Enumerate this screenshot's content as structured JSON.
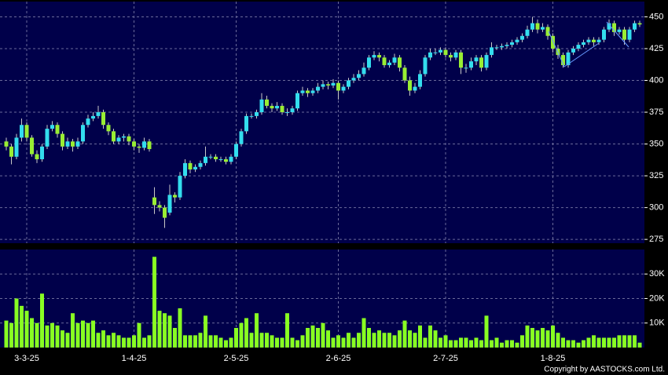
{
  "chart_data": {
    "type": "candlestick",
    "categories": [
      null,
      null,
      null,
      null,
      "3-3-25",
      null,
      null,
      null,
      null,
      null,
      null,
      null,
      null,
      null,
      null,
      null,
      null,
      null,
      null,
      null,
      null,
      null,
      null,
      null,
      null,
      "1-4-25",
      null,
      null,
      null,
      null,
      null,
      null,
      null,
      null,
      null,
      null,
      null,
      null,
      null,
      null,
      null,
      null,
      null,
      null,
      null,
      "2-5-25",
      null,
      null,
      null,
      null,
      null,
      null,
      null,
      null,
      null,
      null,
      null,
      null,
      null,
      null,
      null,
      null,
      null,
      null,
      null,
      "2-6-25",
      null,
      null,
      null,
      null,
      null,
      null,
      null,
      null,
      null,
      null,
      null,
      null,
      null,
      null,
      null,
      null,
      null,
      null,
      null,
      null,
      "2-7-25",
      null,
      null,
      null,
      null,
      null,
      null,
      null,
      null,
      null,
      null,
      null,
      null,
      null,
      null,
      null,
      null,
      null,
      null,
      null,
      null,
      "1-8-25",
      null,
      null,
      null,
      null,
      null,
      null,
      null,
      null,
      null,
      null,
      null,
      null,
      null,
      null,
      null,
      null,
      null
    ],
    "open": [
      352,
      348,
      340,
      355,
      365,
      355,
      342,
      338,
      348,
      362,
      365,
      358,
      348,
      352,
      348,
      352,
      365,
      370,
      372,
      375,
      365,
      360,
      352,
      355,
      356,
      352,
      348,
      347,
      352,
      308,
      302,
      300,
      296,
      310,
      308,
      325,
      335,
      330,
      332,
      335,
      340,
      340,
      338,
      338,
      336,
      340,
      350,
      360,
      372,
      372,
      375,
      385,
      380,
      378,
      380,
      375,
      375,
      378,
      390,
      392,
      390,
      392,
      395,
      397,
      396,
      398,
      392,
      395,
      400,
      402,
      405,
      410,
      418,
      420,
      418,
      412,
      414,
      418,
      410,
      400,
      392,
      395,
      405,
      418,
      422,
      422,
      424,
      420,
      418,
      422,
      410,
      410,
      415,
      418,
      410,
      420,
      426,
      426,
      427,
      428,
      430,
      432,
      435,
      440,
      445,
      440,
      442,
      435,
      425,
      420,
      412,
      422,
      425,
      428,
      430,
      432,
      430,
      432,
      440,
      445,
      438,
      440,
      432,
      440,
      445
    ],
    "high": [
      355,
      350,
      358,
      370,
      367,
      357,
      345,
      350,
      365,
      368,
      367,
      360,
      355,
      354,
      355,
      367,
      373,
      375,
      380,
      377,
      367,
      362,
      357,
      358,
      358,
      354,
      350,
      355,
      354,
      316,
      305,
      302,
      318,
      312,
      328,
      338,
      337,
      334,
      337,
      348,
      342,
      342,
      340,
      340,
      342,
      352,
      362,
      374,
      374,
      377,
      390,
      388,
      382,
      383,
      382,
      378,
      380,
      392,
      395,
      394,
      394,
      398,
      400,
      399,
      401,
      400,
      397,
      402,
      405,
      408,
      414,
      420,
      423,
      422,
      420,
      416,
      421,
      420,
      412,
      403,
      398,
      408,
      420,
      425,
      425,
      426,
      426,
      422,
      424,
      424,
      413,
      418,
      420,
      420,
      422,
      430,
      428,
      429,
      430,
      432,
      434,
      437,
      443,
      450,
      448,
      445,
      444,
      437,
      428,
      422,
      424,
      427,
      430,
      432,
      434,
      434,
      434,
      442,
      448,
      447,
      442,
      442,
      442,
      447,
      447
    ],
    "low": [
      345,
      334,
      338,
      352,
      352,
      340,
      335,
      336,
      346,
      360,
      355,
      345,
      346,
      344,
      346,
      350,
      363,
      368,
      370,
      362,
      357,
      350,
      350,
      352,
      349,
      345,
      343,
      345,
      344,
      295,
      297,
      284,
      294,
      304,
      306,
      323,
      327,
      328,
      330,
      333,
      338,
      336,
      336,
      334,
      334,
      338,
      348,
      358,
      370,
      370,
      373,
      378,
      375,
      376,
      373,
      372,
      373,
      376,
      388,
      387,
      388,
      390,
      393,
      393,
      394,
      385,
      390,
      393,
      398,
      400,
      403,
      408,
      416,
      415,
      410,
      410,
      412,
      407,
      398,
      388,
      390,
      393,
      403,
      416,
      420,
      420,
      418,
      415,
      416,
      405,
      406,
      408,
      412,
      407,
      408,
      418,
      424,
      424,
      425,
      426,
      428,
      430,
      433,
      438,
      437,
      438,
      432,
      422,
      417,
      410,
      410,
      420,
      423,
      426,
      428,
      427,
      428,
      430,
      438,
      435,
      436,
      428,
      430,
      438,
      442
    ],
    "close": [
      348,
      340,
      355,
      365,
      355,
      342,
      338,
      348,
      362,
      365,
      358,
      348,
      352,
      348,
      352,
      365,
      370,
      372,
      375,
      365,
      360,
      352,
      355,
      356,
      352,
      348,
      347,
      352,
      346,
      302,
      300,
      292,
      310,
      308,
      325,
      335,
      330,
      332,
      335,
      340,
      340,
      338,
      338,
      336,
      340,
      350,
      360,
      372,
      372,
      375,
      385,
      380,
      378,
      380,
      375,
      375,
      378,
      390,
      392,
      390,
      392,
      395,
      397,
      396,
      398,
      392,
      395,
      400,
      402,
      405,
      410,
      418,
      420,
      418,
      412,
      414,
      418,
      410,
      400,
      392,
      395,
      405,
      418,
      422,
      422,
      424,
      420,
      418,
      422,
      410,
      410,
      415,
      418,
      410,
      420,
      426,
      426,
      427,
      428,
      430,
      432,
      435,
      440,
      445,
      440,
      442,
      435,
      425,
      420,
      412,
      422,
      425,
      428,
      430,
      432,
      430,
      432,
      440,
      445,
      438,
      440,
      432,
      440,
      445,
      444
    ],
    "volume": [
      11000,
      10000,
      20000,
      17000,
      15000,
      12000,
      10000,
      22000,
      9000,
      10000,
      9000,
      7000,
      6000,
      14000,
      10000,
      11000,
      10000,
      11000,
      6000,
      7000,
      5000,
      6000,
      5000,
      4000,
      4000,
      5000,
      10000,
      4000,
      5000,
      37000,
      15000,
      14000,
      13000,
      8000,
      16000,
      5000,
      5000,
      5000,
      6000,
      13000,
      5000,
      5000,
      4000,
      3000,
      4000,
      8000,
      10000,
      12000,
      6000,
      14000,
      6000,
      6000,
      5000,
      4000,
      4000,
      14000,
      4000,
      3000,
      5000,
      8000,
      9000,
      8000,
      10000,
      7000,
      4000,
      5000,
      4000,
      6000,
      4000,
      6000,
      12000,
      8000,
      6000,
      7000,
      6000,
      6000,
      5000,
      7000,
      11000,
      7000,
      6000,
      9000,
      4000,
      9000,
      7000,
      4000,
      5000,
      3000,
      3000,
      4000,
      4000,
      3000,
      4000,
      3000,
      13000,
      3000,
      4000,
      2000,
      3000,
      3000,
      2000,
      5000,
      9000,
      8000,
      7000,
      8000,
      7000,
      9000,
      6000,
      4000,
      3000,
      3000,
      2000,
      3000,
      4000,
      5000,
      4000,
      4000,
      4000,
      4000,
      5000,
      5000,
      5000,
      5000,
      2000
    ],
    "up_color": "#33ddee",
    "down_color": "#99ee33",
    "volume_color": "#88ff22",
    "ylim": [
      272,
      462
    ],
    "yticks": [
      275,
      300,
      325,
      350,
      375,
      400,
      425,
      450
    ],
    "volume_ylim": [
      0,
      40000
    ],
    "volume_yticks": [
      {
        "value": 10000,
        "label": "10K"
      },
      {
        "value": 20000,
        "label": "20K"
      },
      {
        "value": 30000,
        "label": "30K"
      }
    ],
    "grid": true,
    "copyright": "Copyright by AASTOCKS.com Ltd."
  }
}
